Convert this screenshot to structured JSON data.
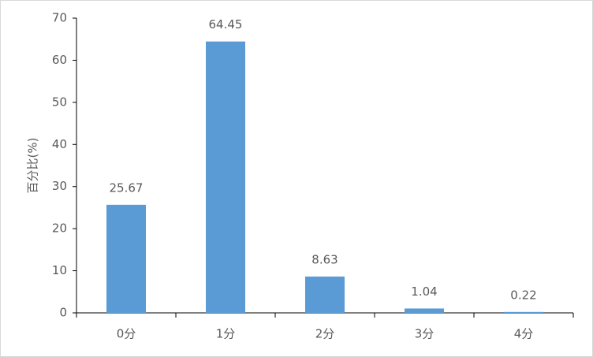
{
  "chart_data": {
    "type": "bar",
    "y_label": "百分比(%)",
    "categories": [
      "0分",
      "1分",
      "2分",
      "3分",
      "4分"
    ],
    "values": [
      25.67,
      64.45,
      8.63,
      1.04,
      0.22
    ],
    "color": "#5b9bd5",
    "ylim": [
      0,
      70
    ],
    "yticks": [
      0,
      10,
      20,
      30,
      40,
      50,
      60,
      70
    ],
    "grid": false
  }
}
